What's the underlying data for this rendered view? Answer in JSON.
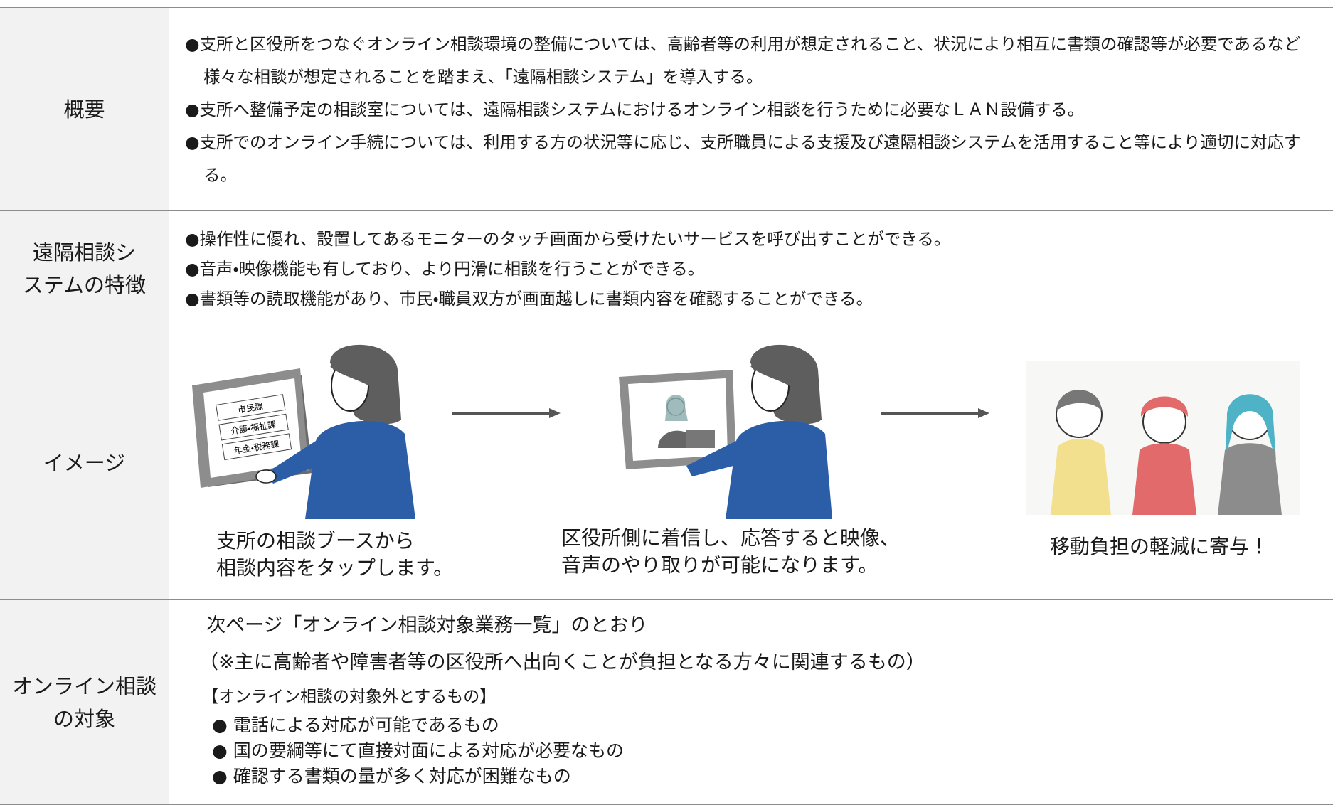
{
  "table": {
    "rows": [
      {
        "label": "概要",
        "items": [
          "●支所と区役所をつなぐオンライン相談環境の整備については、高齢者等の利用が想定されること、状況により相互に書類の確認等が必要であるなど様々な相談が想定されることを踏まえ、「遠隔相談システム」を導入する。",
          "●支所へ整備予定の相談室については、遠隔相談システムにおけるオンライン相談を行うために必要なＬＡＮ設備する。",
          "●支所でのオンライン手続については、利用する方の状況等に応じ、支所職員による支援及び遠隔相談システムを活用すること等により適切に対応する。"
        ]
      },
      {
        "label": "遠隔相談シ\nステムの特徴",
        "items": [
          "●操作性に優れ、設置してあるモニターのタッチ画面から受けたいサービスを呼び出すことができる。",
          "●音声・映像機能も有しており、より円滑に相談を行うことができる。",
          "●書類等の読取機能があり、市民・職員双方が画面越しに書類内容を確認することができる。"
        ]
      },
      {
        "label": "イメージ",
        "steps": [
          {
            "caption": "支所の相談ブースから\n相談内容をタップします。",
            "screen": [
              "市民課",
              "介護・福祉課",
              "年金・税務課"
            ]
          },
          {
            "caption": "区役所側に着信し、応答すると映像、\n音声のやり取りが可能になります。"
          },
          {
            "caption": "移動負担の軽減に寄与！"
          }
        ]
      },
      {
        "label": "オンライン相談\nの対象",
        "lines": [
          "次ページ「オンライン相談対象業務一覧」のとおり",
          "（※主に高齢者や障害者等の区役所へ出向くことが負担となる方々に関連するもの）"
        ],
        "subheading": "【オンライン相談の対象外とするもの】",
        "exclusions": [
          "●  電話による対応が可能であるもの",
          "●  国の要綱等にて直接対面による対応が必要なもの",
          "●  確認する書類の量が多く対応が困難なもの"
        ]
      }
    ]
  }
}
